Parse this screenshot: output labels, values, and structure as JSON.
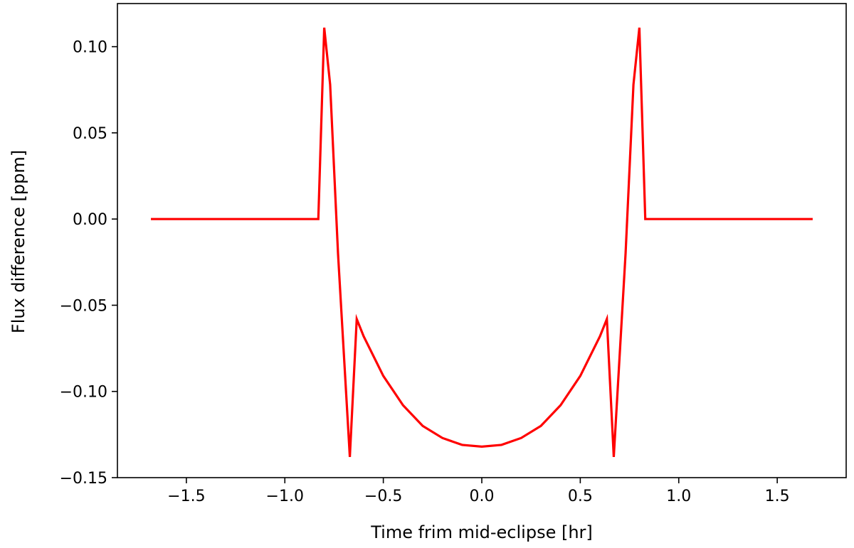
{
  "chart_data": {
    "type": "line",
    "title": "",
    "xlabel": "Time frim mid-eclipse [hr]",
    "ylabel": "Flux difference [ppm]",
    "xlim": [
      -1.85,
      1.85
    ],
    "ylim": [
      -0.15,
      0.125
    ],
    "xticks": [
      -1.5,
      -1.0,
      -0.5,
      0.0,
      0.5,
      1.0,
      1.5
    ],
    "xtick_labels": [
      "−1.5",
      "−1.0",
      "−0.5",
      "0.0",
      "0.5",
      "1.0",
      "1.5"
    ],
    "yticks": [
      0.1,
      0.05,
      0.0,
      -0.05,
      -0.1,
      -0.15
    ],
    "ytick_labels": [
      "0.10",
      "0.05",
      "0.00",
      "−0.05",
      "−0.10",
      "−0.15"
    ],
    "grid": false,
    "legend": "none",
    "series": [
      {
        "color": "#ff0000",
        "x": [
          -1.68,
          -0.83,
          -0.8,
          -0.77,
          -0.73,
          -0.67,
          -0.635,
          -0.6,
          -0.5,
          -0.4,
          -0.3,
          -0.2,
          -0.1,
          0.0,
          0.1,
          0.2,
          0.3,
          0.4,
          0.5,
          0.6,
          0.635,
          0.67,
          0.73,
          0.77,
          0.8,
          0.83,
          1.68
        ],
        "y": [
          0.0,
          0.0,
          0.111,
          0.078,
          -0.02,
          -0.138,
          -0.058,
          -0.068,
          -0.091,
          -0.108,
          -0.12,
          -0.127,
          -0.131,
          -0.132,
          -0.131,
          -0.127,
          -0.12,
          -0.108,
          -0.091,
          -0.068,
          -0.058,
          -0.138,
          -0.02,
          0.078,
          0.111,
          0.0,
          0.0
        ]
      }
    ]
  }
}
